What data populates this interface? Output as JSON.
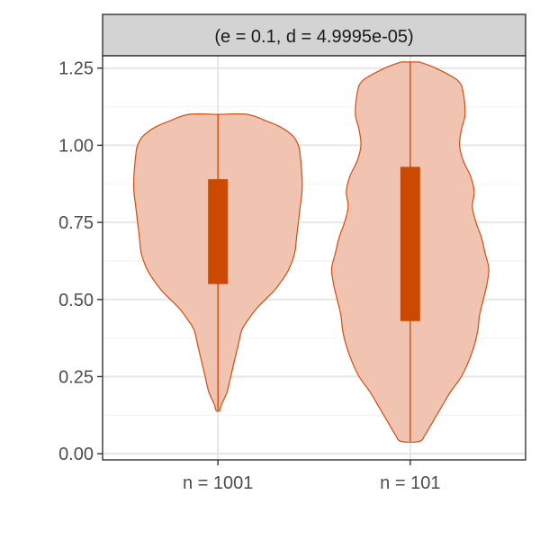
{
  "chart_data": {
    "type": "violin",
    "facet_label": "(e = 0.1, d = 4.9995e-05)",
    "xlabel": "",
    "ylabel": "",
    "ylim": [
      -0.02,
      1.29
    ],
    "y_ticks": [
      0.0,
      0.25,
      0.5,
      0.75,
      1.0,
      1.25
    ],
    "y_tick_labels": [
      "0.00",
      "0.25",
      "0.50",
      "0.75",
      "1.00",
      "1.25"
    ],
    "categories": [
      "n = 1001",
      "n = 101"
    ],
    "grid": true,
    "legend": "none",
    "colors": {
      "fill": "#f0c4b0",
      "outline": "#d24d12",
      "box": "#cc4a00",
      "strip": "#d3d3d3",
      "grid_major": "#e6e6e6",
      "grid_minor": "#f2f2f2"
    },
    "violins": [
      {
        "category": "n = 1001",
        "min": 0.14,
        "max": 1.1,
        "q1": 0.55,
        "q3": 0.89,
        "profile": [
          [
            1.1,
            0.0
          ],
          [
            1.1,
            0.16
          ],
          [
            1.08,
            0.26
          ],
          [
            1.06,
            0.34
          ],
          [
            1.03,
            0.41
          ],
          [
            1.0,
            0.44
          ],
          [
            0.97,
            0.45
          ],
          [
            0.9,
            0.46
          ],
          [
            0.85,
            0.46
          ],
          [
            0.8,
            0.45
          ],
          [
            0.75,
            0.44
          ],
          [
            0.7,
            0.43
          ],
          [
            0.65,
            0.42
          ],
          [
            0.6,
            0.39
          ],
          [
            0.57,
            0.36
          ],
          [
            0.53,
            0.31
          ],
          [
            0.5,
            0.26
          ],
          [
            0.47,
            0.21
          ],
          [
            0.43,
            0.16
          ],
          [
            0.4,
            0.13
          ],
          [
            0.35,
            0.11
          ],
          [
            0.3,
            0.09
          ],
          [
            0.25,
            0.07
          ],
          [
            0.2,
            0.05
          ],
          [
            0.16,
            0.02
          ],
          [
            0.14,
            0.01
          ]
        ]
      },
      {
        "category": "n = 101",
        "min": 0.04,
        "max": 1.27,
        "q1": 0.43,
        "q3": 0.93,
        "profile": [
          [
            1.27,
            0.05
          ],
          [
            1.25,
            0.14
          ],
          [
            1.21,
            0.26
          ],
          [
            1.17,
            0.29
          ],
          [
            1.1,
            0.3
          ],
          [
            1.05,
            0.28
          ],
          [
            1.0,
            0.27
          ],
          [
            0.95,
            0.29
          ],
          [
            0.9,
            0.33
          ],
          [
            0.85,
            0.35
          ],
          [
            0.8,
            0.34
          ],
          [
            0.75,
            0.36
          ],
          [
            0.7,
            0.39
          ],
          [
            0.65,
            0.41
          ],
          [
            0.6,
            0.43
          ],
          [
            0.55,
            0.42
          ],
          [
            0.5,
            0.4
          ],
          [
            0.45,
            0.38
          ],
          [
            0.4,
            0.37
          ],
          [
            0.35,
            0.35
          ],
          [
            0.3,
            0.32
          ],
          [
            0.25,
            0.28
          ],
          [
            0.2,
            0.22
          ],
          [
            0.15,
            0.17
          ],
          [
            0.1,
            0.12
          ],
          [
            0.06,
            0.08
          ],
          [
            0.04,
            0.05
          ]
        ]
      }
    ]
  }
}
